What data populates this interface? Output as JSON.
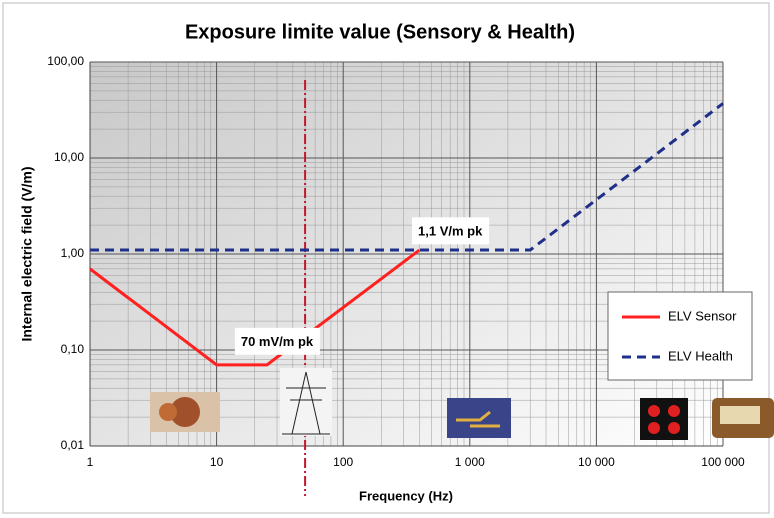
{
  "chart_data": {
    "type": "line",
    "title": "Exposure limite value (Sensory & Health)",
    "xlabel": "Frequency (Hz)",
    "ylabel": "Internal electric field (V/m)",
    "xscale": "log",
    "yscale": "log",
    "xlim": [
      1,
      100000
    ],
    "ylim": [
      0.01,
      100
    ],
    "xticks": [
      1,
      10,
      100,
      {
        "value": 1000,
        "label": "1 000"
      },
      {
        "value": 10000,
        "label": "10 000"
      },
      {
        "value": 100000,
        "label": "100 000"
      }
    ],
    "yticks": [
      {
        "value": 0.01,
        "label": "0,01"
      },
      {
        "value": 0.1,
        "label": "0,10"
      },
      {
        "value": 1,
        "label": "1,00"
      },
      {
        "value": 10,
        "label": "10,00"
      },
      {
        "value": 100,
        "label": "100,00"
      }
    ],
    "grid": true,
    "minor_grid": true,
    "legend": "lower right",
    "series": [
      {
        "name": "ELV Sensor",
        "color": "#ff2020",
        "dash": "solid",
        "x": [
          1,
          10,
          25,
          400
        ],
        "values": [
          0.7,
          0.07,
          0.07,
          1.1
        ]
      },
      {
        "name": "ELV Health",
        "color": "#1f2f8a",
        "dash": "dashed",
        "x": [
          1,
          3000,
          100000
        ],
        "values": [
          1.1,
          1.1,
          37
        ]
      }
    ],
    "vline": {
      "x": 50,
      "color": "#c0182c"
    },
    "annotations": [
      {
        "text": "1,1 V/m pk",
        "x": 700,
        "y": 1.7
      },
      {
        "text": "70 mV/m pk",
        "x": 30,
        "y": 0.12
      }
    ]
  }
}
